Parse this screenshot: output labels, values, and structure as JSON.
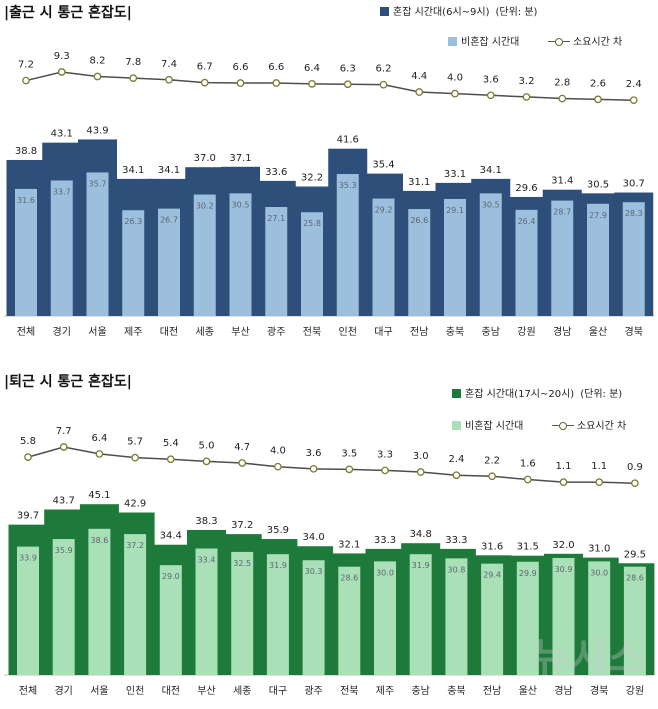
{
  "watermark": "뉴시스",
  "chart_data": [
    {
      "type": "bar",
      "title": "|출근 시 통근 혼잡도|",
      "unit": "(단위: 분)",
      "categories": [
        "전체",
        "경기",
        "서울",
        "제주",
        "대전",
        "세종",
        "부산",
        "광주",
        "전북",
        "인천",
        "대구",
        "전남",
        "충북",
        "충남",
        "강원",
        "경남",
        "울산",
        "경북"
      ],
      "series": [
        {
          "name": "혼잡 시간대(6시~9시)",
          "values": [
            38.8,
            43.1,
            43.9,
            34.1,
            34.1,
            37.0,
            37.1,
            33.6,
            32.2,
            41.6,
            35.4,
            31.1,
            33.1,
            34.1,
            29.6,
            31.4,
            30.5,
            30.7
          ]
        },
        {
          "name": "비혼잡 시간대",
          "values": [
            31.6,
            33.7,
            35.7,
            26.3,
            26.7,
            30.2,
            30.5,
            27.1,
            25.8,
            35.3,
            29.2,
            26.6,
            29.1,
            30.5,
            26.4,
            28.7,
            27.9,
            28.3
          ]
        },
        {
          "name": "소요시간 차",
          "values": [
            7.2,
            9.3,
            8.2,
            7.8,
            7.4,
            6.7,
            6.6,
            6.6,
            6.4,
            6.3,
            6.2,
            4.4,
            4.0,
            3.6,
            3.2,
            2.8,
            2.6,
            2.4
          ]
        }
      ],
      "bar_labels": [
        "38.8",
        "43.1",
        "43.9",
        "34.1",
        "34.1",
        "37.0",
        "37.1",
        "33.6",
        "32.2",
        "41.6",
        "35.4",
        "31.1",
        "33.1",
        "34.1",
        "29.6",
        "31.4",
        "30.5",
        "30.7"
      ],
      "inner_labels": [
        "31.6",
        "33.7",
        "35.7",
        "26.3",
        "26.7",
        "30.2",
        "30.5",
        "27.1",
        "25.8",
        "35.3",
        "29.2",
        "26.6",
        "29.1",
        "30.5",
        "26.4",
        "28.7",
        "27.9",
        "28.3"
      ],
      "diff_labels": [
        "7.2",
        "9.3",
        "8.2",
        "7.8",
        "7.4",
        "6.7",
        "6.6",
        "6.6",
        "6.4",
        "6.3",
        "6.2",
        "4.4",
        "4.0",
        "3.6",
        "3.2",
        "2.8",
        "2.6",
        "2.4"
      ],
      "ylim": [
        0,
        46
      ],
      "colors": {
        "outer": "#2d4f7a",
        "inner": "#9bbfdd",
        "line": "#4d4d4d",
        "marker": "#7a7a30"
      },
      "legend_position": "top-right",
      "grid": false
    },
    {
      "type": "bar",
      "title": "|퇴근 시 통근 혼잡도|",
      "unit": "(단위: 분)",
      "categories": [
        "전체",
        "경기",
        "서울",
        "인천",
        "대전",
        "부산",
        "세종",
        "대구",
        "광주",
        "전북",
        "제주",
        "충남",
        "충북",
        "전남",
        "울산",
        "경남",
        "경북",
        "강원"
      ],
      "series": [
        {
          "name": "혼잡 시간대(17시~20시)",
          "values": [
            39.7,
            43.7,
            45.1,
            42.9,
            34.4,
            38.3,
            37.2,
            35.9,
            34.0,
            32.1,
            33.3,
            34.8,
            33.3,
            31.6,
            31.5,
            32.0,
            31.0,
            29.5
          ]
        },
        {
          "name": "비혼잡 시간대",
          "values": [
            33.9,
            35.9,
            38.6,
            37.2,
            29.0,
            33.4,
            32.5,
            31.9,
            30.3,
            28.6,
            30.0,
            31.9,
            30.8,
            29.4,
            29.9,
            30.9,
            30.0,
            28.6
          ]
        },
        {
          "name": "소요시간 차",
          "values": [
            5.8,
            7.7,
            6.4,
            5.7,
            5.4,
            5.0,
            4.7,
            4.0,
            3.6,
            3.5,
            3.3,
            3.0,
            2.4,
            2.2,
            1.6,
            1.1,
            1.1,
            0.9
          ]
        }
      ],
      "bar_labels": [
        "39.7",
        "43.7",
        "45.1",
        "42.9",
        "34.4",
        "38.3",
        "37.2",
        "35.9",
        "34.0",
        "32.1",
        "33.3",
        "34.8",
        "33.3",
        "31.6",
        "31.5",
        "32.0",
        "31.0",
        "29.5"
      ],
      "inner_labels": [
        "33.9",
        "35.9",
        "38.6",
        "37.2",
        "29.0",
        "33.4",
        "32.5",
        "31.9",
        "30.3",
        "28.6",
        "30.0",
        "31.9",
        "30.8",
        "29.4",
        "29.9",
        "30.9",
        "30.0",
        "28.6"
      ],
      "diff_labels": [
        "5.8",
        "7.7",
        "6.4",
        "5.7",
        "5.4",
        "5.0",
        "4.7",
        "4.0",
        "3.6",
        "3.5",
        "3.3",
        "3.0",
        "2.4",
        "2.2",
        "1.6",
        "1.1",
        "1.1",
        "0.9"
      ],
      "ylim": [
        0,
        47
      ],
      "colors": {
        "outer": "#1e7a3a",
        "inner": "#a9e0b8",
        "line": "#4d4d4d",
        "marker": "#7a7a30"
      },
      "legend_position": "top-right",
      "grid": false
    }
  ]
}
